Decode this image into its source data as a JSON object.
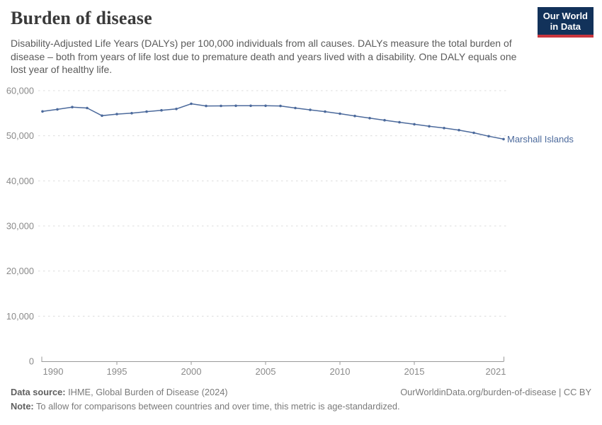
{
  "header": {
    "title": "Burden of disease",
    "subtitle": "Disability-Adjusted Life Years (DALYs) per 100,000 individuals from all causes. DALYs measure the total burden of disease – both from years of life lost due to premature death and years lived with a disability. One DALY equals one lost year of healthy life.",
    "logo": {
      "line1": "Our World",
      "line2": "in Data"
    }
  },
  "chart_data": {
    "type": "line",
    "title": "Burden of disease",
    "xlabel": "",
    "ylabel": "",
    "xlim": [
      1990,
      2021
    ],
    "ylim": [
      0,
      60000
    ],
    "x_ticks": [
      1990,
      1995,
      2000,
      2005,
      2010,
      2015,
      2021
    ],
    "y_ticks": [
      0,
      10000,
      20000,
      30000,
      40000,
      50000,
      60000
    ],
    "grid": "horizontal-dashed",
    "legend_position": "line-end-label",
    "series": [
      {
        "name": "Marshall Islands",
        "color": "#4c6a9c",
        "x": [
          1990,
          1991,
          1992,
          1993,
          1994,
          1995,
          1996,
          1997,
          1998,
          1999,
          2000,
          2001,
          2002,
          2003,
          2004,
          2005,
          2006,
          2007,
          2008,
          2009,
          2010,
          2011,
          2012,
          2013,
          2014,
          2015,
          2016,
          2017,
          2018,
          2019,
          2020,
          2021
        ],
        "values": [
          55400,
          55850,
          56350,
          56150,
          54450,
          54800,
          55000,
          55350,
          55650,
          55950,
          57100,
          56600,
          56620,
          56650,
          56660,
          56650,
          56600,
          56150,
          55750,
          55350,
          54900,
          54400,
          53900,
          53450,
          53000,
          52550,
          52100,
          51700,
          51250,
          50650,
          49900,
          49250
        ]
      }
    ]
  },
  "footer": {
    "source_label": "Data source:",
    "source_text": "IHME, Global Burden of Disease (2024)",
    "link": "OurWorldinData.org/burden-of-disease | CC BY",
    "note_label": "Note:",
    "note_text": "To allow for comparisons between countries and over time, this metric is age-standardized."
  },
  "colors": {
    "accent_line": "#4c6a9c",
    "grid": "#dcdcdc",
    "axis": "#999999",
    "tick_label": "#8a8a8a",
    "logo_bg": "#12325a",
    "logo_red": "#c9353d"
  }
}
